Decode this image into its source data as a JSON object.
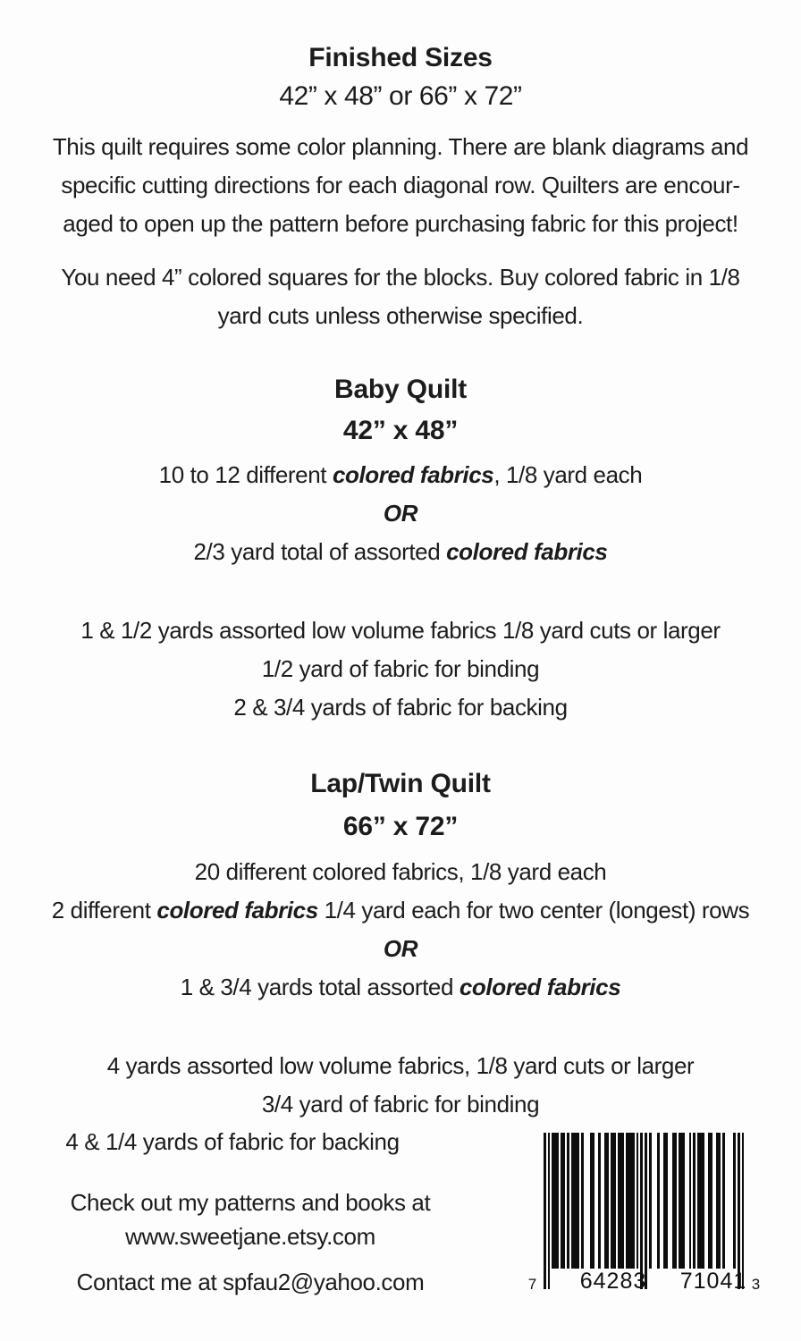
{
  "page": {
    "background": "#fdfdfd",
    "text_color": "#1c1c1c"
  },
  "header": {
    "title": "Finished Sizes",
    "subtitle": "42” x 48” or 66” x 72”"
  },
  "intro": {
    "para1_lines": [
      "This quilt requires some color planning. There are blank diagrams and",
      "specific cutting directions for each diagonal row. Quilters are encour-",
      "aged to open up the pattern before purchasing fabric for this project!"
    ],
    "para2_lines": [
      "You need 4” colored squares for the blocks. Buy colored fabric in 1/8",
      "yard cuts unless otherwise specified."
    ]
  },
  "baby_quilt": {
    "title": "Baby Quilt",
    "size": "42” x 48”",
    "req1_pre": "10 to 12 different ",
    "req1_em": "colored fabrics",
    "req1_post": ", 1/8 yard each",
    "or_label": "OR",
    "req2_pre": "2/3 yard total of assorted ",
    "req2_em": "colored fabrics",
    "more": [
      "1 & 1/2 yards assorted low volume fabrics 1/8 yard cuts or larger",
      "1/2 yard of fabric for binding",
      "2 & 3/4 yards of fabric for backing"
    ]
  },
  "lap_twin_quilt": {
    "title": "Lap/Twin Quilt",
    "size": "66” x 72”",
    "req1": "20 different colored fabrics, 1/8 yard each",
    "req2_pre": "2 different ",
    "req2_em": "colored fabrics",
    "req2_post": " 1/4 yard each for two center (longest) rows",
    "or_label": "OR",
    "req3_pre": "1 & 3/4 yards total assorted ",
    "req3_em": "colored fabrics",
    "more": [
      "4 yards assorted low volume fabrics, 1/8 yard cuts or larger",
      "3/4 yard of fabric for binding",
      "4 & 1/4 yards of fabric for backing"
    ]
  },
  "footer": {
    "line1": "Check out my patterns and books at",
    "line2": "www.sweetjane.etsy.com",
    "line3": "Contact me at spfau2@yahoo.com"
  },
  "barcode": {
    "digits_left": "7",
    "digits_group1": "64283",
    "digits_group2": "71041",
    "digits_right": "3",
    "modules": "10101110110101111010001100100110110111011110101010100010011001101110010101110011001101000010101"
  }
}
